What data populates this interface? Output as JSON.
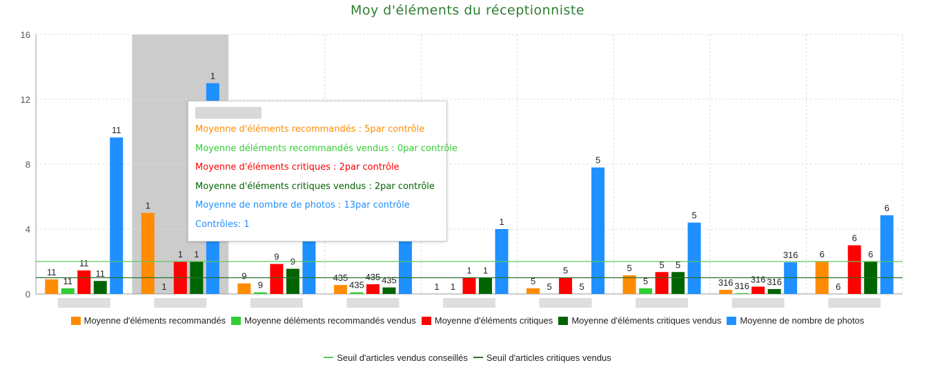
{
  "colors": {
    "recommended": "#ff8c00",
    "recommended_sold": "#32cd32",
    "critical": "#ff0000",
    "critical_sold": "#006400",
    "photos": "#1e90ff",
    "threshold_advised": "#5cc85c",
    "threshold_critical": "#2a6e2a",
    "title": "#2e7d32"
  },
  "chart_data": {
    "type": "bar",
    "title": "Moy d'éléments du réceptionniste",
    "xlabel": "",
    "ylabel": "",
    "ylim": [
      0,
      16
    ],
    "yticks": [
      0,
      4,
      8,
      12,
      16
    ],
    "grid": true,
    "legend_position": "bottom",
    "categories": [
      "",
      "",
      "",
      "",
      "",
      "",
      "",
      "",
      ""
    ],
    "highlighted_category_index": 1,
    "series": [
      {
        "name": "Moyenne d'éléments recommandés",
        "color_key": "recommended",
        "values": [
          0.9,
          5.0,
          0.65,
          0.55,
          0,
          0.35,
          1.15,
          0.25,
          2.0
        ],
        "labels": [
          "11",
          "1",
          "9",
          "435",
          "1",
          "5",
          "5",
          "316",
          "6"
        ]
      },
      {
        "name": "Moyenne déléments recommandés vendus",
        "color_key": "recommended_sold",
        "values": [
          0.35,
          0,
          0.1,
          0.1,
          0,
          0,
          0.35,
          0.05,
          0
        ],
        "labels": [
          "11",
          "1",
          "9",
          "435",
          "1",
          "5",
          "5",
          "316",
          "6"
        ]
      },
      {
        "name": "Moyenne d'éléments critiques",
        "color_key": "critical",
        "values": [
          1.45,
          2.0,
          1.85,
          0.6,
          1.0,
          1.0,
          1.35,
          0.45,
          3.0
        ],
        "labels": [
          "11",
          "1",
          "9",
          "435",
          "1",
          "5",
          "5",
          "316",
          "6"
        ]
      },
      {
        "name": "Moyenne d'éléments critiques vendus",
        "color_key": "critical_sold",
        "values": [
          0.8,
          2.0,
          1.55,
          0.4,
          1.0,
          0,
          1.35,
          0.3,
          2.0
        ],
        "labels": [
          "11",
          "1",
          "9",
          "435",
          "1",
          "5",
          "5",
          "316",
          "6"
        ]
      },
      {
        "name": "Moyenne de nombre de photos",
        "color_key": "photos",
        "values": [
          9.65,
          13.0,
          3.4,
          3.4,
          4.0,
          7.8,
          4.4,
          1.95,
          4.85
        ],
        "labels": [
          "11",
          "1",
          "",
          "",
          "1",
          "5",
          "5",
          "316",
          "6"
        ]
      }
    ],
    "reference_lines": [
      {
        "name": "Seuil d'articles vendus conseillés",
        "color_key": "threshold_advised",
        "y": 2.0
      },
      {
        "name": "Seuil d'articles critiques vendus",
        "color_key": "threshold_critical",
        "y": 1.0
      }
    ]
  },
  "tooltip": {
    "lines": [
      {
        "text": "Moyenne d'éléments recommandés : 5par contrôle",
        "color_key": "recommended"
      },
      {
        "text": "Moyenne déléments recommandés vendus : 0par contrôle",
        "color_key": "recommended_sold"
      },
      {
        "text": "Moyenne d'éléments critiques : 2par contrôle",
        "color_key": "critical"
      },
      {
        "text": "Moyenne d'éléments critiques vendus : 2par contrôle",
        "color_key": "critical_sold"
      },
      {
        "text": "Moyenne de nombre de photos : 13par contrôle",
        "color_key": "photos"
      },
      {
        "text": "Contrôles: 1",
        "color_key": "photos"
      }
    ]
  }
}
